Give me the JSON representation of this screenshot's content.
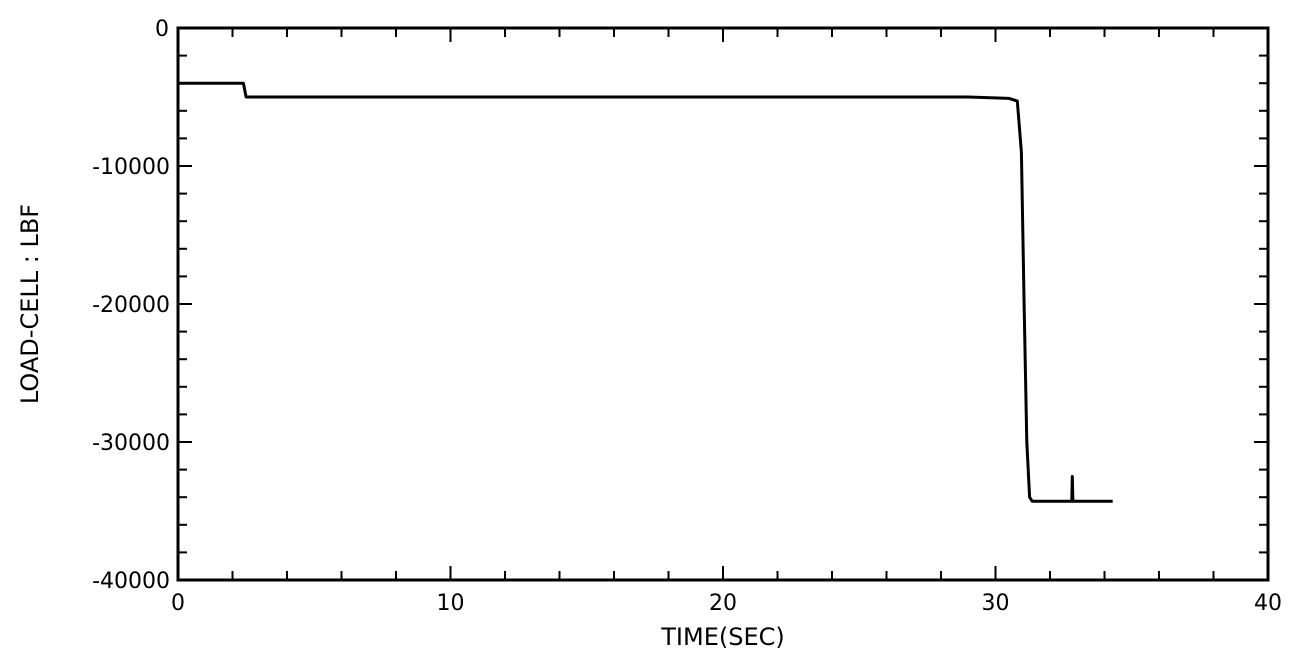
{
  "chart_data": {
    "type": "line",
    "title": "",
    "xlabel": "TIME(SEC)",
    "ylabel": "LOAD-CELL : LBF",
    "xlim": [
      0,
      40
    ],
    "ylim": [
      -40000,
      0
    ],
    "x_ticks": [
      0,
      10,
      20,
      30,
      40
    ],
    "y_ticks": [
      0,
      -10000,
      -20000,
      -30000,
      -40000
    ],
    "x_tick_labels": [
      "0",
      "10",
      "20",
      "30",
      "40"
    ],
    "y_tick_labels": [
      "0",
      "-10000",
      "-20000",
      "-30000",
      "-40000"
    ],
    "grid": false,
    "series": [
      {
        "x": [
          0,
          2.4,
          2.5,
          10,
          20,
          29,
          30.5,
          30.8,
          30.95,
          31.05,
          31.15,
          31.25,
          31.35,
          32.8,
          32.82,
          32.84,
          34.3
        ],
        "y": [
          -4000,
          -4000,
          -5000,
          -5000,
          -5000,
          -5000,
          -5100,
          -5300,
          -9000,
          -20000,
          -30000,
          -34000,
          -34300,
          -34300,
          -32500,
          -34300,
          -34300
        ]
      }
    ]
  }
}
